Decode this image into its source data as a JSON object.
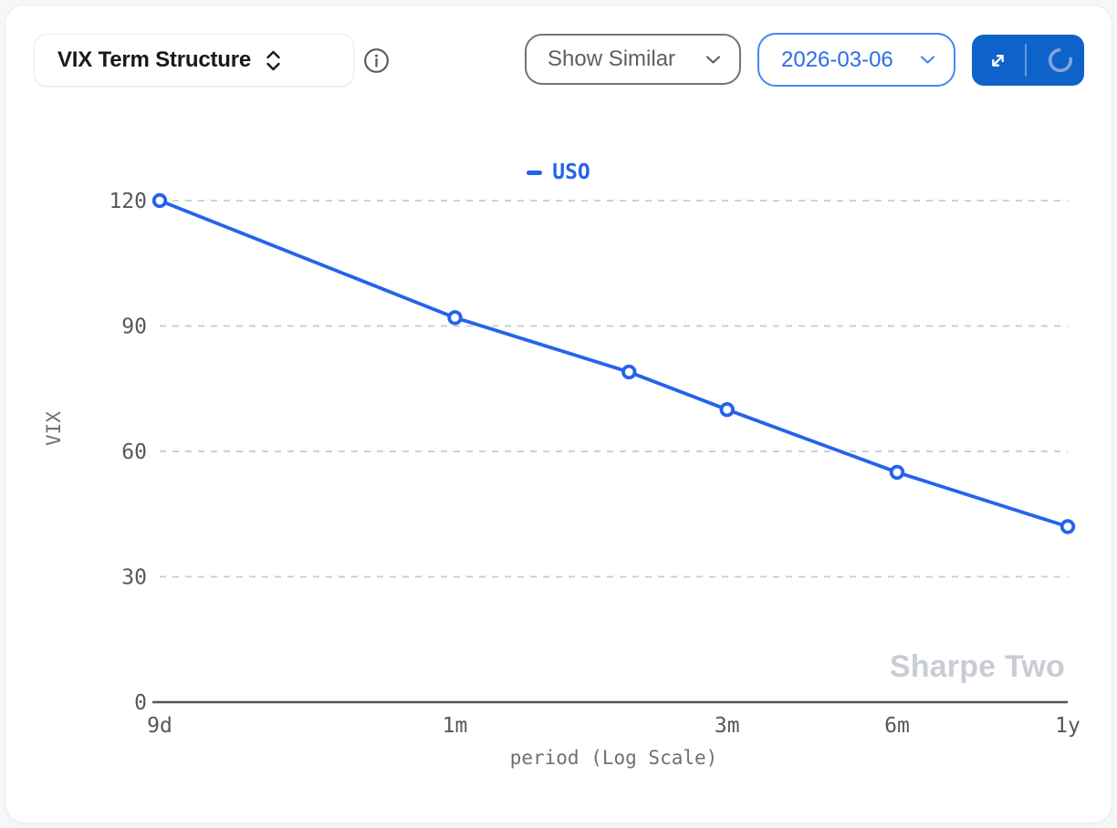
{
  "header": {
    "metric_select": {
      "value": "VIX Term Structure"
    },
    "show_similar": {
      "label": "Show Similar"
    },
    "date_picker": {
      "value": "2026-03-06"
    }
  },
  "icons": {
    "metric_select": "chevron-up-down",
    "info": "info-circle",
    "show_similar": "chevron-down",
    "date_picker": "chevron-down",
    "expand": "expand-diagonal-arrows",
    "loading": "spinner-arc"
  },
  "colors": {
    "accent_blue": "#2563eb",
    "button_blue": "#0e63cb",
    "date_blue": "#2e6ce8",
    "date_border_blue": "#4386f5",
    "gridline": "#c8c9cb",
    "axis": "#515459",
    "tick_text": "#55585c",
    "axis_label_text": "#6d7177",
    "watermark_text": "#c8ccd4"
  },
  "watermark": "Sharpe Two",
  "chart_data": {
    "type": "line",
    "x_scale": "log",
    "xlabel": "period (Log Scale)",
    "ylabel": "VIX",
    "ylim": [
      0,
      120
    ],
    "y_ticks": [
      0,
      30,
      60,
      90,
      120
    ],
    "x_ticks": [
      {
        "label": "9d",
        "days": 9
      },
      {
        "label": "1m",
        "days": 30
      },
      {
        "label": "3m",
        "days": 91
      },
      {
        "label": "6m",
        "days": 182
      },
      {
        "label": "1y",
        "days": 365
      }
    ],
    "grid": "horizontal-dashed",
    "legend_position": "top-center",
    "series": [
      {
        "name": "USO",
        "color": "#2563eb",
        "points": [
          {
            "period": "9d",
            "days": 9,
            "vix": 120
          },
          {
            "period": "1m",
            "days": 30,
            "vix": 92
          },
          {
            "period": "2m",
            "days": 61,
            "vix": 79
          },
          {
            "period": "3m",
            "days": 91,
            "vix": 70
          },
          {
            "period": "6m",
            "days": 182,
            "vix": 55
          },
          {
            "period": "1y",
            "days": 365,
            "vix": 42
          }
        ]
      }
    ]
  }
}
